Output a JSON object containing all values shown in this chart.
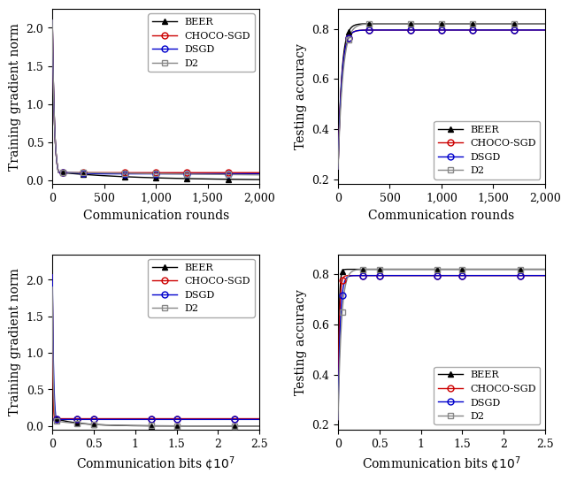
{
  "colors": {
    "BEER": "#000000",
    "CHOCO-SGD": "#cc0000",
    "DSGD": "#0000cc",
    "D2": "#888888"
  },
  "markers": {
    "BEER": "^",
    "CHOCO-SGD": "o",
    "DSGD": "o",
    "D2": "s"
  },
  "marker_fc": {
    "BEER": "#000000",
    "CHOCO-SGD": "none",
    "DSGD": "none",
    "D2": "none"
  },
  "legend_labels": [
    "BEER",
    "CHOCO-SGD",
    "DSGD",
    "D2"
  ],
  "top_left": {
    "xlabel": "Communication rounds",
    "ylabel": "Training gradient norm",
    "xlim": [
      0,
      2000
    ],
    "ylim": [
      -0.05,
      2.25
    ],
    "yticks": [
      0,
      0.5,
      1.0,
      1.5,
      2.0
    ],
    "xticks": [
      0,
      500,
      1000,
      1500,
      2000
    ]
  },
  "top_right": {
    "xlabel": "Communication rounds",
    "ylabel": "Testing accuracy",
    "xlim": [
      0,
      2000
    ],
    "ylim": [
      0.18,
      0.88
    ],
    "yticks": [
      0.2,
      0.4,
      0.6,
      0.8
    ],
    "xticks": [
      0,
      500,
      1000,
      1500,
      2000
    ]
  },
  "bottom_left": {
    "xlabel": "Communication bits",
    "ylabel": "Training gradient norm",
    "xlim": [
      0,
      25000000.0
    ],
    "ylim": [
      -0.05,
      2.35
    ],
    "yticks": [
      0,
      0.5,
      1.0,
      1.5,
      2.0
    ],
    "xticks": [
      0,
      5000000.0,
      10000000.0,
      15000000.0,
      20000000.0,
      25000000.0
    ],
    "xtick_labels": [
      "0",
      "0.5",
      "1",
      "1.5",
      "2",
      "2.5"
    ]
  },
  "bottom_right": {
    "xlabel": "Communication bits",
    "ylabel": "Testing accuracy",
    "xlim": [
      0,
      25000000.0
    ],
    "ylim": [
      0.18,
      0.88
    ],
    "yticks": [
      0.2,
      0.4,
      0.6,
      0.8
    ],
    "xticks": [
      0,
      5000000.0,
      10000000.0,
      15000000.0,
      20000000.0,
      25000000.0
    ],
    "xtick_labels": [
      "0",
      "0.5",
      "1",
      "1.5",
      "2",
      "2.5"
    ]
  },
  "linewidth": 1.0,
  "markersize": 5,
  "fontsize_label": 10,
  "fontsize_tick": 9,
  "fontsize_legend": 8
}
